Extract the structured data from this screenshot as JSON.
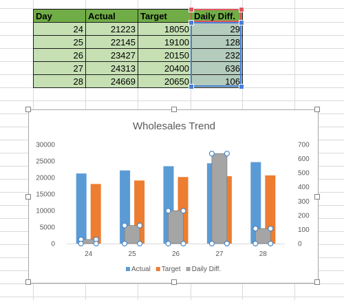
{
  "table": {
    "headers": [
      "Day",
      "Actual",
      "Target",
      "Daily Diff."
    ],
    "rows": [
      [
        "24",
        "21223",
        "18050",
        "29"
      ],
      [
        "25",
        "22145",
        "19100",
        "128"
      ],
      [
        "26",
        "23427",
        "20150",
        "232"
      ],
      [
        "27",
        "24313",
        "20400",
        "636"
      ],
      [
        "28",
        "24669",
        "20650",
        "106"
      ]
    ]
  },
  "colors": {
    "header_fill": "#70ad47",
    "cell_fill": "#c6e0b4",
    "selection": "#4a7dd9",
    "actual": "#5b9bd5",
    "target": "#ed7d31",
    "diff": "#a5a5a5"
  },
  "chart_data": {
    "type": "bar",
    "title": "Wholesales Trend",
    "categories": [
      "24",
      "25",
      "26",
      "27",
      "28"
    ],
    "series": [
      {
        "name": "Actual",
        "axis": "left",
        "values": [
          21223,
          22145,
          23427,
          24313,
          24669
        ]
      },
      {
        "name": "Target",
        "axis": "left",
        "values": [
          18050,
          19100,
          20150,
          20400,
          20650
        ]
      },
      {
        "name": "Daily Diff.",
        "axis": "right",
        "values": [
          29,
          128,
          232,
          636,
          106
        ]
      }
    ],
    "y_left": {
      "ticks": [
        "0",
        "5000",
        "10000",
        "15000",
        "20000",
        "25000",
        "30000"
      ],
      "lim": [
        0,
        30000
      ]
    },
    "y_right": {
      "ticks": [
        "0",
        "100",
        "200",
        "300",
        "400",
        "500",
        "600",
        "700"
      ],
      "lim": [
        0,
        700
      ]
    },
    "legend": "bottom",
    "grid": false
  }
}
